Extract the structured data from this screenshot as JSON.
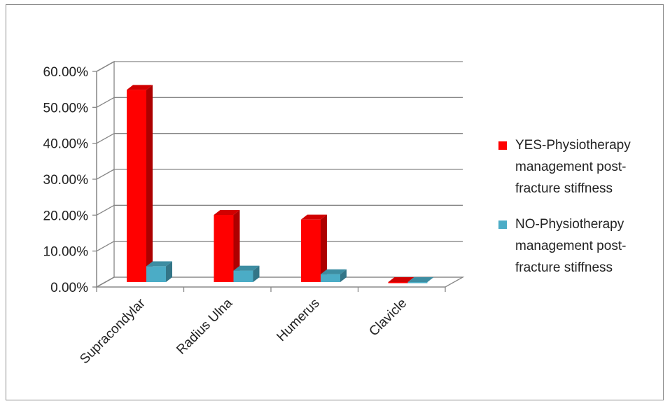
{
  "chart_data": {
    "type": "bar",
    "style": "3d-clustered",
    "categories": [
      "Supracondylar",
      "Radius Ulna",
      "Humerus",
      "Clavicle"
    ],
    "series": [
      {
        "name": "YES-Physiotherapy management post-fracture stiffness",
        "name_lines": [
          "YES-Physiotherapy",
          "management post-",
          "fracture stiffness"
        ],
        "color": "#ff0000",
        "values": [
          0.535,
          0.187,
          0.174,
          0.0
        ]
      },
      {
        "name": "NO-Physiotherapy management post-fracture stiffness",
        "name_lines": [
          "NO-Physiotherapy",
          "management post-",
          "fracture stiffness"
        ],
        "color": "#4bacc6",
        "values": [
          0.044,
          0.032,
          0.022,
          0.0
        ]
      }
    ],
    "y_ticks": [
      "0.00%",
      "10.00%",
      "20.00%",
      "30.00%",
      "40.00%",
      "50.00%",
      "60.00%"
    ],
    "ylim": [
      0,
      0.6
    ],
    "grid": true,
    "legend": "right"
  }
}
